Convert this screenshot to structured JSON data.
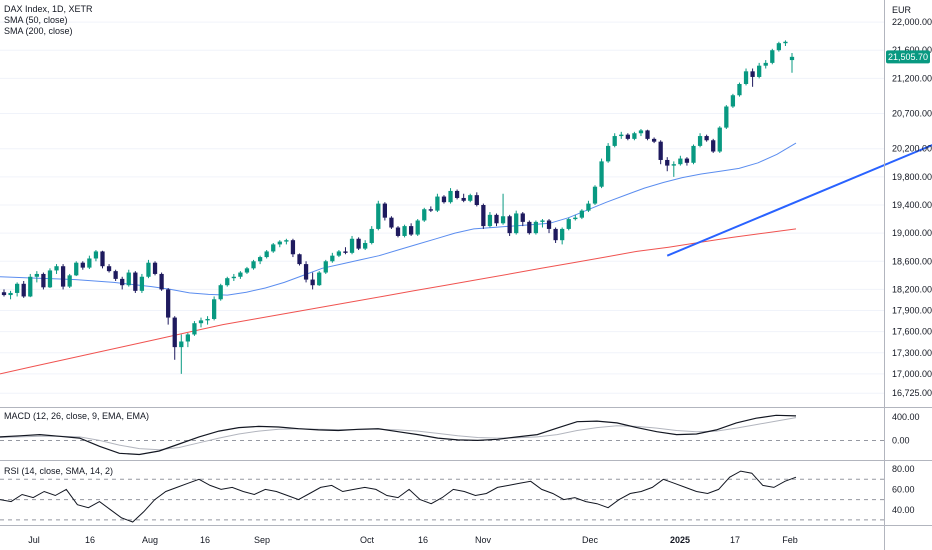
{
  "header": {
    "title": "DAX Index, 1D, XETR",
    "sma50_label": "SMA (50, close)",
    "sma200_label": "SMA (200, close)",
    "currency": "EUR",
    "last_price": "21,505.70"
  },
  "colors": {
    "up": "#089981",
    "down": "#1e1a5e",
    "sma50": "#5b8def",
    "sma200": "#f05350",
    "trendline": "#2962ff",
    "price_badge": "#089981",
    "macd": "#131722",
    "macd_signal": "#b2b5be",
    "rsi": "#131722"
  },
  "macd_panel": {
    "label": "MACD (12, 26, close, 9, EMA, EMA)",
    "ticks": [
      "400.00",
      "0.00"
    ]
  },
  "rsi_panel": {
    "label": "RSI (14, close, SMA, 14, 2)",
    "ticks": [
      "80.00",
      "60.00",
      "40.00"
    ]
  },
  "chart_data": {
    "type": "candlestick",
    "price_ticks": [
      22000,
      21600,
      21200,
      20700,
      20200,
      19800,
      19400,
      19000,
      18600,
      18200,
      17900,
      17600,
      17300,
      17000,
      16725
    ],
    "price_tick_labels": [
      "22,000.00",
      "21,600.00",
      "21,200.00",
      "20,700.00",
      "20,200.00",
      "19,800.00",
      "19,400.00",
      "19,000.00",
      "18,600.00",
      "18,200.00",
      "17,900.00",
      "17,600.00",
      "17,300.00",
      "17,000.00",
      "16,725.00"
    ],
    "time_labels": [
      "Jul",
      "16",
      "Aug",
      "16",
      "Sep",
      "Oct",
      "16",
      "Nov",
      "Dec",
      "2025",
      "17",
      "Feb"
    ],
    "candles": [
      {
        "o": 18160,
        "h": 18200,
        "l": 18100,
        "c": 18120
      },
      {
        "o": 18120,
        "h": 18180,
        "l": 18060,
        "c": 18150
      },
      {
        "o": 18150,
        "h": 18300,
        "l": 18100,
        "c": 18280
      },
      {
        "o": 18280,
        "h": 18320,
        "l": 18080,
        "c": 18100
      },
      {
        "o": 18100,
        "h": 18420,
        "l": 18090,
        "c": 18380
      },
      {
        "o": 18380,
        "h": 18460,
        "l": 18300,
        "c": 18420
      },
      {
        "o": 18420,
        "h": 18440,
        "l": 18200,
        "c": 18230
      },
      {
        "o": 18230,
        "h": 18500,
        "l": 18220,
        "c": 18470
      },
      {
        "o": 18470,
        "h": 18560,
        "l": 18420,
        "c": 18530
      },
      {
        "o": 18530,
        "h": 18560,
        "l": 18200,
        "c": 18240
      },
      {
        "o": 18240,
        "h": 18420,
        "l": 18220,
        "c": 18400
      },
      {
        "o": 18400,
        "h": 18600,
        "l": 18390,
        "c": 18580
      },
      {
        "o": 18580,
        "h": 18600,
        "l": 18480,
        "c": 18510
      },
      {
        "o": 18510,
        "h": 18680,
        "l": 18490,
        "c": 18640
      },
      {
        "o": 18640,
        "h": 18760,
        "l": 18600,
        "c": 18740
      },
      {
        "o": 18740,
        "h": 18750,
        "l": 18500,
        "c": 18530
      },
      {
        "o": 18530,
        "h": 18560,
        "l": 18440,
        "c": 18460
      },
      {
        "o": 18460,
        "h": 18480,
        "l": 18320,
        "c": 18350
      },
      {
        "o": 18350,
        "h": 18380,
        "l": 18200,
        "c": 18260
      },
      {
        "o": 18260,
        "h": 18480,
        "l": 18240,
        "c": 18440
      },
      {
        "o": 18440,
        "h": 18460,
        "l": 18150,
        "c": 18180
      },
      {
        "o": 18180,
        "h": 18420,
        "l": 18150,
        "c": 18380
      },
      {
        "o": 18380,
        "h": 18620,
        "l": 18360,
        "c": 18580
      },
      {
        "o": 18580,
        "h": 18600,
        "l": 18400,
        "c": 18420
      },
      {
        "o": 18420,
        "h": 18440,
        "l": 18180,
        "c": 18200
      },
      {
        "o": 18200,
        "h": 18220,
        "l": 17700,
        "c": 17800
      },
      {
        "o": 17800,
        "h": 17820,
        "l": 17200,
        "c": 17380
      },
      {
        "o": 17380,
        "h": 17560,
        "l": 17000,
        "c": 17460
      },
      {
        "o": 17460,
        "h": 17580,
        "l": 17380,
        "c": 17560
      },
      {
        "o": 17560,
        "h": 17750,
        "l": 17540,
        "c": 17720
      },
      {
        "o": 17720,
        "h": 17800,
        "l": 17660,
        "c": 17760
      },
      {
        "o": 17760,
        "h": 17820,
        "l": 17700,
        "c": 17780
      },
      {
        "o": 17780,
        "h": 18100,
        "l": 17760,
        "c": 18060
      },
      {
        "o": 18060,
        "h": 18280,
        "l": 18040,
        "c": 18260
      },
      {
        "o": 18260,
        "h": 18380,
        "l": 18240,
        "c": 18360
      },
      {
        "o": 18360,
        "h": 18420,
        "l": 18320,
        "c": 18380
      },
      {
        "o": 18380,
        "h": 18460,
        "l": 18350,
        "c": 18440
      },
      {
        "o": 18440,
        "h": 18520,
        "l": 18420,
        "c": 18500
      },
      {
        "o": 18500,
        "h": 18620,
        "l": 18480,
        "c": 18600
      },
      {
        "o": 18600,
        "h": 18680,
        "l": 18560,
        "c": 18660
      },
      {
        "o": 18660,
        "h": 18760,
        "l": 18640,
        "c": 18740
      },
      {
        "o": 18740,
        "h": 18860,
        "l": 18720,
        "c": 18840
      },
      {
        "o": 18840,
        "h": 18900,
        "l": 18800,
        "c": 18880
      },
      {
        "o": 18880,
        "h": 18920,
        "l": 18840,
        "c": 18900
      },
      {
        "o": 18900,
        "h": 18920,
        "l": 18660,
        "c": 18700
      },
      {
        "o": 18700,
        "h": 18710,
        "l": 18540,
        "c": 18560
      },
      {
        "o": 18560,
        "h": 18600,
        "l": 18300,
        "c": 18340
      },
      {
        "o": 18340,
        "h": 18440,
        "l": 18200,
        "c": 18260
      },
      {
        "o": 18260,
        "h": 18460,
        "l": 18250,
        "c": 18440
      },
      {
        "o": 18440,
        "h": 18620,
        "l": 18420,
        "c": 18600
      },
      {
        "o": 18600,
        "h": 18720,
        "l": 18580,
        "c": 18680
      },
      {
        "o": 18680,
        "h": 18760,
        "l": 18660,
        "c": 18740
      },
      {
        "o": 18740,
        "h": 18800,
        "l": 18700,
        "c": 18720
      },
      {
        "o": 18720,
        "h": 18960,
        "l": 18700,
        "c": 18920
      },
      {
        "o": 18920,
        "h": 18940,
        "l": 18760,
        "c": 18780
      },
      {
        "o": 18780,
        "h": 18900,
        "l": 18760,
        "c": 18860
      },
      {
        "o": 18860,
        "h": 19100,
        "l": 18840,
        "c": 19060
      },
      {
        "o": 19060,
        "h": 19460,
        "l": 19040,
        "c": 19420
      },
      {
        "o": 19420,
        "h": 19440,
        "l": 19180,
        "c": 19220
      },
      {
        "o": 19220,
        "h": 19240,
        "l": 19060,
        "c": 19080
      },
      {
        "o": 19080,
        "h": 19100,
        "l": 18940,
        "c": 18960
      },
      {
        "o": 18960,
        "h": 19120,
        "l": 18940,
        "c": 19100
      },
      {
        "o": 19100,
        "h": 19140,
        "l": 18960,
        "c": 18980
      },
      {
        "o": 18980,
        "h": 19200,
        "l": 18960,
        "c": 19180
      },
      {
        "o": 19180,
        "h": 19360,
        "l": 19160,
        "c": 19340
      },
      {
        "o": 19340,
        "h": 19380,
        "l": 19300,
        "c": 19320
      },
      {
        "o": 19320,
        "h": 19560,
        "l": 19300,
        "c": 19520
      },
      {
        "o": 19520,
        "h": 19540,
        "l": 19420,
        "c": 19440
      },
      {
        "o": 19440,
        "h": 19640,
        "l": 19420,
        "c": 19600
      },
      {
        "o": 19600,
        "h": 19620,
        "l": 19480,
        "c": 19500
      },
      {
        "o": 19500,
        "h": 19560,
        "l": 19440,
        "c": 19460
      },
      {
        "o": 19460,
        "h": 19560,
        "l": 19440,
        "c": 19540
      },
      {
        "o": 19540,
        "h": 19580,
        "l": 19380,
        "c": 19400
      },
      {
        "o": 19400,
        "h": 19420,
        "l": 19060,
        "c": 19100
      },
      {
        "o": 19100,
        "h": 19300,
        "l": 19080,
        "c": 19260
      },
      {
        "o": 19260,
        "h": 19280,
        "l": 19100,
        "c": 19140
      },
      {
        "o": 19140,
        "h": 19560,
        "l": 19120,
        "c": 19240
      },
      {
        "o": 19240,
        "h": 19260,
        "l": 18960,
        "c": 19000
      },
      {
        "o": 19000,
        "h": 19320,
        "l": 18980,
        "c": 19280
      },
      {
        "o": 19280,
        "h": 19300,
        "l": 19100,
        "c": 19160
      },
      {
        "o": 19160,
        "h": 19180,
        "l": 18980,
        "c": 19000
      },
      {
        "o": 19000,
        "h": 19180,
        "l": 18980,
        "c": 19160
      },
      {
        "o": 19160,
        "h": 19200,
        "l": 19080,
        "c": 19180
      },
      {
        "o": 19180,
        "h": 19200,
        "l": 19000,
        "c": 19060
      },
      {
        "o": 19060,
        "h": 19080,
        "l": 18860,
        "c": 18900
      },
      {
        "o": 18900,
        "h": 19080,
        "l": 18840,
        "c": 19060
      },
      {
        "o": 19060,
        "h": 19220,
        "l": 19040,
        "c": 19200
      },
      {
        "o": 19200,
        "h": 19260,
        "l": 19180,
        "c": 19220
      },
      {
        "o": 19220,
        "h": 19340,
        "l": 19200,
        "c": 19320
      },
      {
        "o": 19320,
        "h": 19460,
        "l": 19300,
        "c": 19420
      },
      {
        "o": 19420,
        "h": 19680,
        "l": 19400,
        "c": 19660
      },
      {
        "o": 19660,
        "h": 20060,
        "l": 19640,
        "c": 20020
      },
      {
        "o": 20020,
        "h": 20280,
        "l": 20000,
        "c": 20240
      },
      {
        "o": 20240,
        "h": 20420,
        "l": 20220,
        "c": 20380
      },
      {
        "o": 20380,
        "h": 20440,
        "l": 20340,
        "c": 20400
      },
      {
        "o": 20400,
        "h": 20420,
        "l": 20320,
        "c": 20340
      },
      {
        "o": 20340,
        "h": 20440,
        "l": 20320,
        "c": 20420
      },
      {
        "o": 20420,
        "h": 20480,
        "l": 20380,
        "c": 20460
      },
      {
        "o": 20460,
        "h": 20470,
        "l": 20320,
        "c": 20340
      },
      {
        "o": 20340,
        "h": 20360,
        "l": 20280,
        "c": 20300
      },
      {
        "o": 20300,
        "h": 20320,
        "l": 19980,
        "c": 20040
      },
      {
        "o": 20040,
        "h": 20080,
        "l": 19880,
        "c": 19960
      },
      {
        "o": 19960,
        "h": 20020,
        "l": 19800,
        "c": 19980
      },
      {
        "o": 19980,
        "h": 20100,
        "l": 19960,
        "c": 20060
      },
      {
        "o": 20060,
        "h": 20080,
        "l": 19960,
        "c": 20000
      },
      {
        "o": 20000,
        "h": 20260,
        "l": 19980,
        "c": 20240
      },
      {
        "o": 20240,
        "h": 20420,
        "l": 20220,
        "c": 20380
      },
      {
        "o": 20380,
        "h": 20400,
        "l": 20300,
        "c": 20320
      },
      {
        "o": 20320,
        "h": 20340,
        "l": 20140,
        "c": 20160
      },
      {
        "o": 20160,
        "h": 20520,
        "l": 20140,
        "c": 20500
      },
      {
        "o": 20500,
        "h": 20820,
        "l": 20480,
        "c": 20800
      },
      {
        "o": 20800,
        "h": 20980,
        "l": 20780,
        "c": 20960
      },
      {
        "o": 20960,
        "h": 21140,
        "l": 20940,
        "c": 21120
      },
      {
        "o": 21120,
        "h": 21340,
        "l": 21100,
        "c": 21300
      },
      {
        "o": 21300,
        "h": 21340,
        "l": 21080,
        "c": 21220
      },
      {
        "o": 21220,
        "h": 21420,
        "l": 21200,
        "c": 21380
      },
      {
        "o": 21380,
        "h": 21460,
        "l": 21340,
        "c": 21420
      },
      {
        "o": 21420,
        "h": 21620,
        "l": 21400,
        "c": 21600
      },
      {
        "o": 21600,
        "h": 21720,
        "l": 21580,
        "c": 21700
      },
      {
        "o": 21700,
        "h": 21740,
        "l": 21660,
        "c": 21720
      },
      {
        "o": 21460,
        "h": 21560,
        "l": 21280,
        "c": 21505.7
      }
    ],
    "sma50": [
      18380,
      18370,
      18360,
      18350,
      18340,
      18320,
      18300,
      18270,
      18240,
      18200,
      18150,
      18130,
      18120,
      18160,
      18220,
      18300,
      18400,
      18500,
      18560,
      18620,
      18680,
      18760,
      18840,
      18920,
      19000,
      19060,
      19080,
      19100,
      19120,
      19140,
      19220,
      19330,
      19440,
      19540,
      19640,
      19720,
      19790,
      19840,
      19880,
      19920,
      20000,
      20120,
      20280
    ],
    "sma200": [
      17000,
      17100,
      17200,
      17300,
      17400,
      17500,
      17600,
      17700,
      17780,
      17860,
      17940,
      18020,
      18100,
      18180,
      18260,
      18340,
      18420,
      18500,
      18580,
      18660,
      18740,
      18800,
      18870,
      18940,
      19000,
      19060
    ],
    "trendline": {
      "from": {
        "i": 101,
        "v": 18680
      },
      "to": {
        "i": 166,
        "v": 20940
      }
    },
    "macd": [
      60,
      80,
      100,
      70,
      40,
      -100,
      -220,
      -240,
      -180,
      -60,
      60,
      160,
      220,
      240,
      230,
      200,
      180,
      170,
      190,
      200,
      150,
      100,
      40,
      10,
      0,
      20,
      60,
      100,
      210,
      320,
      330,
      300,
      220,
      150,
      100,
      110,
      180,
      300,
      380,
      430,
      420
    ],
    "macd_signal": [
      50,
      60,
      70,
      70,
      60,
      0,
      -80,
      -140,
      -160,
      -120,
      -40,
      40,
      110,
      160,
      190,
      200,
      190,
      185,
      185,
      190,
      180,
      160,
      120,
      80,
      50,
      40,
      45,
      60,
      100,
      170,
      220,
      250,
      240,
      210,
      170,
      150,
      160,
      210,
      270,
      330,
      390
    ],
    "rsi": [
      50,
      48,
      55,
      52,
      58,
      54,
      60,
      45,
      42,
      48,
      40,
      32,
      28,
      38,
      50,
      58,
      62,
      66,
      70,
      64,
      60,
      62,
      58,
      55,
      60,
      58,
      54,
      50,
      56,
      62,
      64,
      58,
      60,
      62,
      60,
      54,
      52,
      60,
      50,
      46,
      52,
      60,
      58,
      54,
      56,
      62,
      64,
      66,
      68,
      60,
      56,
      50,
      52,
      48,
      46,
      42,
      50,
      56,
      58,
      62,
      70,
      66,
      62,
      58,
      56,
      60,
      72,
      78,
      76,
      64,
      62,
      68,
      72
    ]
  }
}
